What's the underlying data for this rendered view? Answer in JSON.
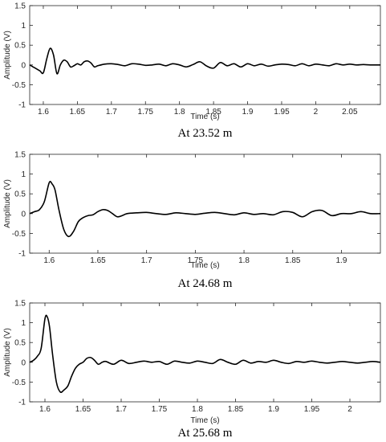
{
  "chart_data": [
    {
      "type": "line",
      "caption": "At 23.52 m",
      "xlabel": "Time (s)",
      "ylabel": "Amplitude (V)",
      "xlim": [
        1.58,
        2.095
      ],
      "ylim": [
        -1,
        1.5
      ],
      "xticks": [
        "1.6",
        "1.65",
        "1.7",
        "1.75",
        "1.8",
        "1.85",
        "1.9",
        "1.95",
        "2",
        "2.05"
      ],
      "yticks": [
        "-1",
        "-0.5",
        "0",
        "0.5",
        "1",
        "1.5"
      ],
      "grid": false,
      "series": [
        {
          "x": [
            1.58,
            1.585,
            1.59,
            1.595,
            1.6,
            1.605,
            1.61,
            1.615,
            1.62,
            1.625,
            1.63,
            1.635,
            1.64,
            1.645,
            1.65,
            1.655,
            1.66,
            1.665,
            1.67,
            1.675,
            1.68,
            1.69,
            1.7,
            1.71,
            1.72,
            1.73,
            1.74,
            1.75,
            1.76,
            1.77,
            1.78,
            1.79,
            1.8,
            1.81,
            1.82,
            1.83,
            1.84,
            1.85,
            1.86,
            1.87,
            1.88,
            1.89,
            1.9,
            1.91,
            1.92,
            1.93,
            1.94,
            1.95,
            1.96,
            1.97,
            1.98,
            1.99,
            2,
            2.01,
            2.02,
            2.03,
            2.04,
            2.05,
            2.06,
            2.07,
            2.08,
            2.095
          ],
          "y": [
            0,
            -0.05,
            -0.1,
            -0.15,
            -0.2,
            0.15,
            0.42,
            0.25,
            -0.22,
            0.0,
            0.12,
            0.08,
            -0.05,
            -0.02,
            0.03,
            0.0,
            0.08,
            0.1,
            0.05,
            -0.05,
            -0.02,
            0.02,
            0.03,
            0.01,
            -0.02,
            0.03,
            0.02,
            -0.01,
            0.0,
            0.02,
            -0.02,
            0.03,
            0.0,
            -0.05,
            0.01,
            0.08,
            -0.03,
            -0.08,
            0.06,
            -0.02,
            0.03,
            -0.05,
            0.03,
            -0.02,
            0.02,
            -0.03,
            0.0,
            0.02,
            0.01,
            -0.02,
            0.03,
            -0.02,
            0.02,
            0.0,
            -0.02,
            0.03,
            0.0,
            0.02,
            0.0,
            0.01,
            0.0,
            0.0
          ]
        }
      ]
    },
    {
      "type": "line",
      "caption": "At 24.68 m",
      "xlabel": "Time (s)",
      "ylabel": "Amplitude (V)",
      "xlim": [
        1.58,
        1.94
      ],
      "ylim": [
        -1,
        1.5
      ],
      "xticks": [
        "1.6",
        "1.65",
        "1.7",
        "1.75",
        "1.8",
        "1.85",
        "1.9"
      ],
      "yticks": [
        "-1",
        "-0.5",
        "0",
        "0.5",
        "1",
        "1.5"
      ],
      "grid": false,
      "series": [
        {
          "x": [
            1.58,
            1.585,
            1.59,
            1.595,
            1.6,
            1.603,
            1.606,
            1.61,
            1.615,
            1.62,
            1.625,
            1.63,
            1.635,
            1.64,
            1.645,
            1.65,
            1.655,
            1.66,
            1.665,
            1.67,
            1.675,
            1.68,
            1.69,
            1.7,
            1.71,
            1.72,
            1.73,
            1.74,
            1.75,
            1.76,
            1.77,
            1.78,
            1.79,
            1.8,
            1.81,
            1.82,
            1.83,
            1.84,
            1.85,
            1.86,
            1.87,
            1.88,
            1.89,
            1.9,
            1.91,
            1.92,
            1.93,
            1.94
          ],
          "y": [
            0,
            0.05,
            0.1,
            0.3,
            0.78,
            0.75,
            0.6,
            0.1,
            -0.4,
            -0.58,
            -0.45,
            -0.2,
            -0.1,
            -0.05,
            -0.03,
            0.05,
            0.1,
            0.08,
            0.0,
            -0.08,
            -0.05,
            0.0,
            0.02,
            0.03,
            0.0,
            -0.02,
            0.02,
            0.0,
            -0.02,
            0.01,
            0.03,
            0.0,
            -0.03,
            0.02,
            -0.02,
            0.0,
            -0.03,
            0.05,
            0.03,
            -0.08,
            0.05,
            0.08,
            -0.05,
            0.0,
            0.0,
            0.05,
            0.0,
            0.0
          ]
        }
      ]
    },
    {
      "type": "line",
      "caption": "At 25.68 m",
      "xlabel": "Time (s)",
      "ylabel": "Amplitude (V)",
      "xlim": [
        1.58,
        2.04
      ],
      "ylim": [
        -1,
        1.5
      ],
      "xticks": [
        "1.6",
        "1.65",
        "1.7",
        "1.75",
        "1.8",
        "1.85",
        "1.9",
        "1.95",
        "2"
      ],
      "yticks": [
        "-1",
        "-0.5",
        "0",
        "0.5",
        "1",
        "1.5"
      ],
      "grid": false,
      "series": [
        {
          "x": [
            1.58,
            1.585,
            1.59,
            1.595,
            1.6,
            1.603,
            1.606,
            1.61,
            1.615,
            1.62,
            1.625,
            1.63,
            1.635,
            1.64,
            1.645,
            1.65,
            1.655,
            1.66,
            1.665,
            1.67,
            1.675,
            1.68,
            1.69,
            1.7,
            1.71,
            1.72,
            1.73,
            1.74,
            1.75,
            1.76,
            1.77,
            1.78,
            1.79,
            1.8,
            1.81,
            1.82,
            1.83,
            1.84,
            1.85,
            1.86,
            1.87,
            1.88,
            1.89,
            1.9,
            1.91,
            1.92,
            1.93,
            1.94,
            1.95,
            1.96,
            1.97,
            1.98,
            1.99,
            2,
            2.01,
            2.02,
            2.03,
            2.04
          ],
          "y": [
            0,
            0.05,
            0.15,
            0.35,
            1.1,
            1.15,
            0.9,
            0.2,
            -0.5,
            -0.75,
            -0.7,
            -0.6,
            -0.35,
            -0.15,
            -0.05,
            0.0,
            0.1,
            0.12,
            0.05,
            -0.05,
            0.0,
            0.02,
            -0.05,
            0.05,
            -0.03,
            0.0,
            0.03,
            0.0,
            0.02,
            -0.05,
            0.03,
            0.0,
            -0.02,
            0.03,
            0.0,
            -0.03,
            0.07,
            0.0,
            -0.05,
            0.05,
            -0.02,
            0.02,
            0.0,
            0.05,
            0.0,
            -0.03,
            0.02,
            0.0,
            0.03,
            0.0,
            -0.02,
            0.0,
            0.02,
            0.0,
            -0.02,
            0.0,
            0.02,
            0.0
          ]
        }
      ]
    }
  ]
}
